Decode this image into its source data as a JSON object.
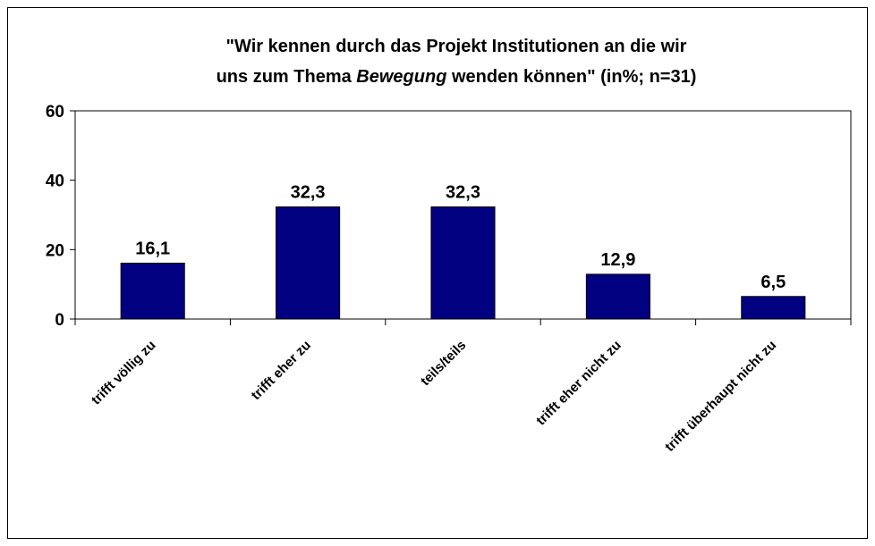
{
  "chart_data": {
    "type": "bar",
    "title": {
      "line1": "\"Wir kennen durch das Projekt Institutionen an die wir",
      "line2": [
        "uns zum Thema",
        "Bewegung",
        "wenden können\" (in%; n=31)"
      ]
    },
    "categories": [
      "trifft völlig zu",
      "trifft eher zu",
      "teils/teils",
      "trifft eher nicht zu",
      "trifft überhaupt nicht zu"
    ],
    "values": [
      16.1,
      32.3,
      32.3,
      12.9,
      6.5
    ],
    "value_labels": [
      "16,1",
      "32,3",
      "32,3",
      "12,9",
      "6,5"
    ],
    "color": "#000080",
    "ylim": [
      0,
      60
    ],
    "yticks": [
      0,
      20,
      40,
      60
    ],
    "grid": false
  }
}
